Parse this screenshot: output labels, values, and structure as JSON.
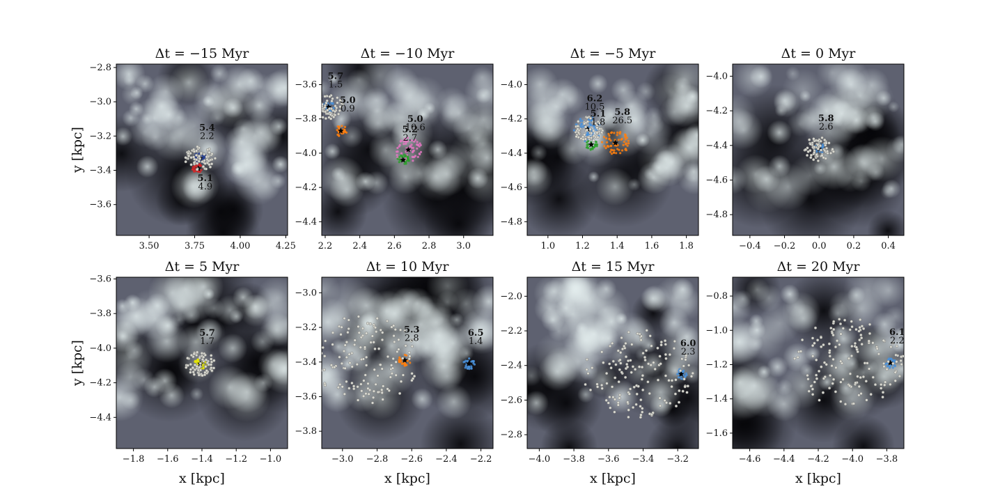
{
  "chart_data": [
    {
      "type": "scatter",
      "title": "Δt = −15 Myr",
      "xticks": [
        "3.50",
        "3.75",
        "4.00",
        "4.25"
      ],
      "yticks": [
        "−2.8",
        "−3.0",
        "−3.2",
        "−3.4",
        "−3.6"
      ],
      "xlim": [
        3.32,
        4.26
      ],
      "ylim": [
        -3.78,
        -2.78
      ],
      "xlabel": "",
      "ylabel": "y [kpc]",
      "clusters": [
        {
          "top": "5.4",
          "bottom": "2.2",
          "x": 3.78,
          "y": -3.33,
          "color": "#1f3a93"
        },
        {
          "top": "5.1",
          "bottom": "4.9",
          "x": 3.77,
          "y": -3.39,
          "color": "#d62728"
        }
      ]
    },
    {
      "type": "scatter",
      "title": "Δt = −10 Myr",
      "xticks": [
        "2.2",
        "2.4",
        "2.6",
        "2.8",
        "3.0"
      ],
      "yticks": [
        "−3.6",
        "−3.8",
        "−4.0",
        "−4.2",
        "−4.4"
      ],
      "xlim": [
        2.18,
        3.17
      ],
      "ylim": [
        -4.48,
        -3.48
      ],
      "xlabel": "",
      "ylabel": "",
      "clusters": [
        {
          "top": "5.7",
          "bottom": "1.5",
          "x": 2.22,
          "y": -3.73,
          "color": "#4a90d9"
        },
        {
          "top": "5.0",
          "bottom": "0.9",
          "x": 2.29,
          "y": -3.87,
          "color": "#ff7f0e"
        },
        {
          "top": "5.0",
          "bottom": "10.6",
          "x": 2.68,
          "y": -3.98,
          "color": "#e377c2"
        },
        {
          "top": "5.2",
          "bottom": "2.7",
          "x": 2.65,
          "y": -4.04,
          "color": "#2ca02c"
        }
      ]
    },
    {
      "type": "scatter",
      "title": "Δt = −5 Myr",
      "xticks": [
        "1.0",
        "1.2",
        "1.4",
        "1.6",
        "1.8"
      ],
      "yticks": [
        "−4.0",
        "−4.2",
        "−4.4",
        "−4.6",
        "−4.8"
      ],
      "xlim": [
        0.88,
        1.87
      ],
      "ylim": [
        -4.88,
        -3.88
      ],
      "xlabel": "",
      "ylabel": "",
      "clusters": [
        {
          "top": "6.2",
          "bottom": "10.5",
          "x": 1.23,
          "y": -4.26,
          "color": "#4a90d9"
        },
        {
          "top": "5.8",
          "bottom": "26.5",
          "x": 1.39,
          "y": -4.34,
          "color": "#ff7f0e"
        },
        {
          "top": "5.1",
          "bottom": "1.8",
          "x": 1.25,
          "y": -4.35,
          "color": "#2ca02c"
        }
      ]
    },
    {
      "type": "scatter",
      "title": "Δt = 0 Myr",
      "xticks": [
        "−0.4",
        "−0.2",
        "0.0",
        "0.2",
        "0.4"
      ],
      "yticks": [
        "−4.0",
        "−4.2",
        "−4.4",
        "−4.6",
        "−4.8"
      ],
      "xlim": [
        -0.5,
        0.49
      ],
      "ylim": [
        -4.92,
        -3.93
      ],
      "xlabel": "",
      "ylabel": "",
      "clusters": [
        {
          "top": "5.8",
          "bottom": "2.6",
          "x": 0.0,
          "y": -4.42,
          "color": "#4a90d9"
        }
      ]
    },
    {
      "type": "scatter",
      "title": "Δt = 5 Myr",
      "xticks": [
        "−1.8",
        "−1.6",
        "−1.4",
        "−1.2",
        "−1.0"
      ],
      "yticks": [
        "−3.6",
        "−3.8",
        "−4.0",
        "−4.2",
        "−4.4"
      ],
      "xlim": [
        -1.9,
        -0.9
      ],
      "ylim": [
        -4.58,
        -3.59
      ],
      "xlabel": "x [kpc]",
      "ylabel": "y [kpc]",
      "clusters": [
        {
          "top": "5.7",
          "bottom": "1.7",
          "x": -1.41,
          "y": -4.09,
          "color": "#e8e800"
        }
      ]
    },
    {
      "type": "scatter",
      "title": "Δt = 10 Myr",
      "xticks": [
        "−3.0",
        "−2.8",
        "−2.6",
        "−2.4",
        "−2.2"
      ],
      "yticks": [
        "−3.0",
        "−3.2",
        "−3.4",
        "−3.6",
        "−3.8"
      ],
      "xlim": [
        -3.12,
        -2.13
      ],
      "ylim": [
        -3.9,
        -2.91
      ],
      "xlabel": "x [kpc]",
      "ylabel": "",
      "clusters": [
        {
          "top": "5.3",
          "bottom": "2.8",
          "x": -2.64,
          "y": -3.39,
          "color": "#ff7f0e"
        },
        {
          "top": "6.5",
          "bottom": "1.4",
          "x": -2.27,
          "y": -3.41,
          "color": "#4a90d9"
        }
      ]
    },
    {
      "type": "scatter",
      "title": "Δt = 15 Myr",
      "xticks": [
        "−4.0",
        "−3.8",
        "−3.6",
        "−3.4",
        "−3.2"
      ],
      "yticks": [
        "−2.0",
        "−2.2",
        "−2.4",
        "−2.6",
        "−2.8"
      ],
      "xlim": [
        -4.07,
        -3.08
      ],
      "ylim": [
        -2.88,
        -1.89
      ],
      "xlabel": "x [kpc]",
      "ylabel": "",
      "clusters": [
        {
          "top": "6.0",
          "bottom": "2.3",
          "x": -3.18,
          "y": -2.45,
          "color": "#4a90d9"
        }
      ]
    },
    {
      "type": "scatter",
      "title": "Δt = 20 Myr",
      "xticks": [
        "−4.6",
        "−4.4",
        "−4.2",
        "−4.0",
        "−3.8"
      ],
      "yticks": [
        "−0.8",
        "−1.0",
        "−1.2",
        "−1.4",
        "−1.6"
      ],
      "xlim": [
        -4.7,
        -3.7
      ],
      "ylim": [
        -1.69,
        -0.69
      ],
      "xlabel": "x [kpc]",
      "ylabel": "",
      "clusters": [
        {
          "top": "6.1",
          "bottom": "2.2",
          "x": -3.78,
          "y": -1.19,
          "color": "#4a90d9"
        }
      ]
    }
  ]
}
